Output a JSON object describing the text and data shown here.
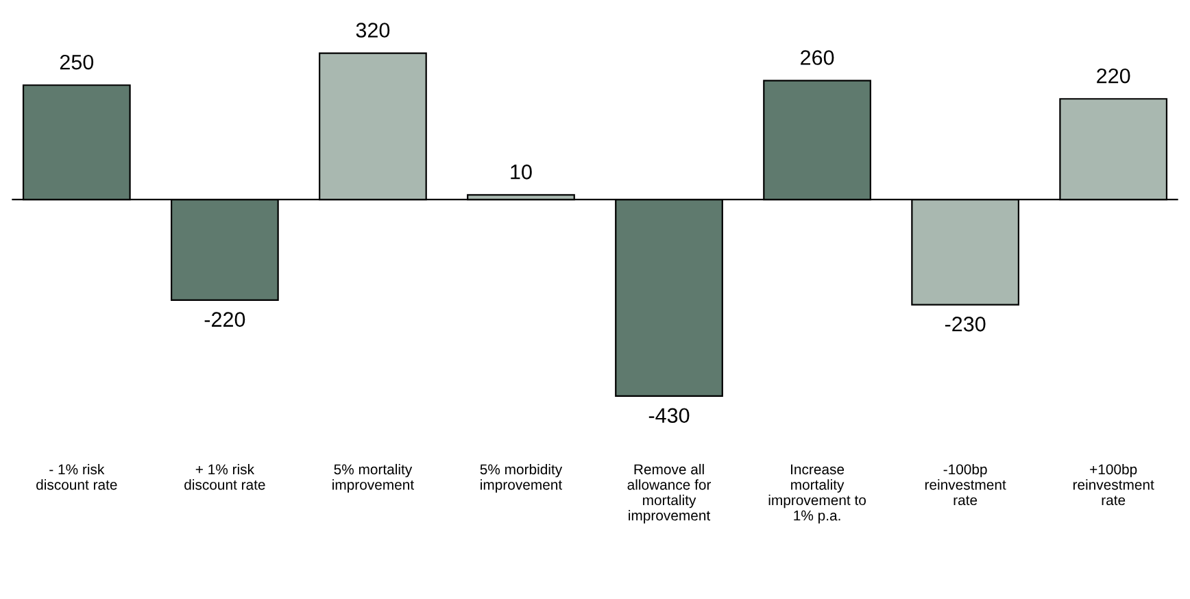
{
  "chart_data": {
    "type": "bar",
    "categories": [
      "- 1% risk\ndiscount rate",
      "+ 1% risk\ndiscount rate",
      "5% mortality\nimprovement",
      "5% morbidity\nimprovement",
      "Remove all\nallowance for\nmortality\nimprovement",
      "Increase\nmortality\nimprovement to\n1% p.a.",
      "-100bp\nreinvestment\nrate",
      "+100bp\nreinvestment\nrate"
    ],
    "values": [
      250,
      -220,
      320,
      10,
      -430,
      260,
      -230,
      220
    ],
    "colors": [
      "#5f7a6e",
      "#5f7a6e",
      "#a9b8b0",
      "#a9b8b0",
      "#5f7a6e",
      "#5f7a6e",
      "#a9b8b0",
      "#a9b8b0"
    ],
    "data_labels": true
  }
}
